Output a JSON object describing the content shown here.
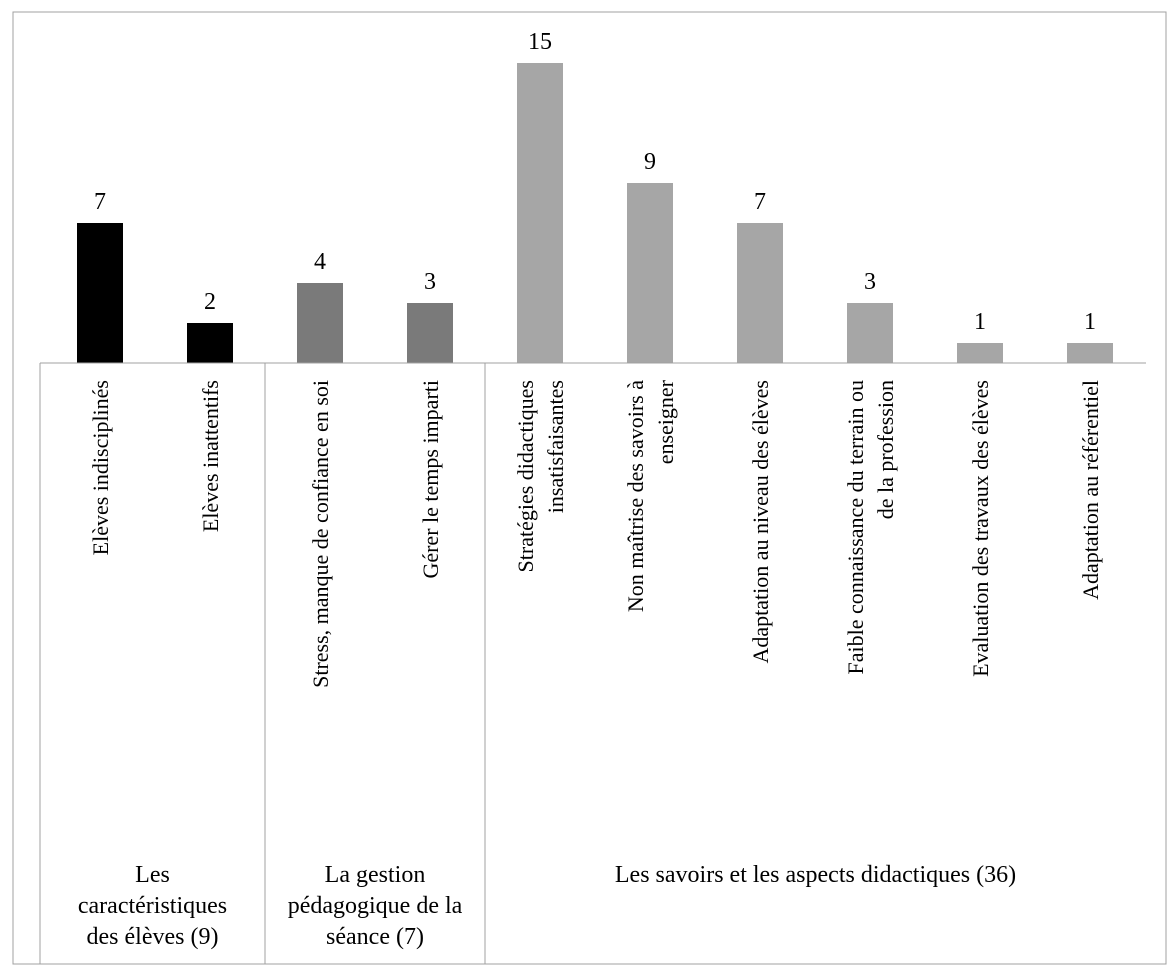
{
  "chart_data": {
    "type": "bar",
    "title": "",
    "xlabel": "",
    "ylabel": "",
    "ylim": [
      0,
      16
    ],
    "grid": false,
    "legend": "none",
    "categories": [
      "Elèves indisciplinés",
      "Elèves inattentifs",
      "Stress, manque de confiance en soi",
      "Gérer le temps imparti",
      "Stratégies didactiques insatisfaisantes",
      "Non maîtrise des savoirs à enseigner",
      "Adaptation au niveau des élèves",
      "Faible connaissance du terrain ou de la profession",
      "Evaluation des travaux des élèves",
      "Adaptation au référentiel"
    ],
    "values": [
      7,
      2,
      4,
      3,
      15,
      9,
      7,
      3,
      1,
      1
    ],
    "data_labels": [
      "7",
      "2",
      "4",
      "3",
      "15",
      "9",
      "7",
      "3",
      "1",
      "1"
    ],
    "groups": [
      {
        "label": "Les caractéristiques des élèves (9)",
        "start": 0,
        "end": 1,
        "color": "#000000"
      },
      {
        "label": "La gestion pédagogique de la séance (7)",
        "start": 2,
        "end": 3,
        "color": "#7a7a7a"
      },
      {
        "label": "Les savoirs et les aspects didactiques (36)",
        "start": 4,
        "end": 9,
        "color": "#a6a6a6"
      }
    ]
  }
}
